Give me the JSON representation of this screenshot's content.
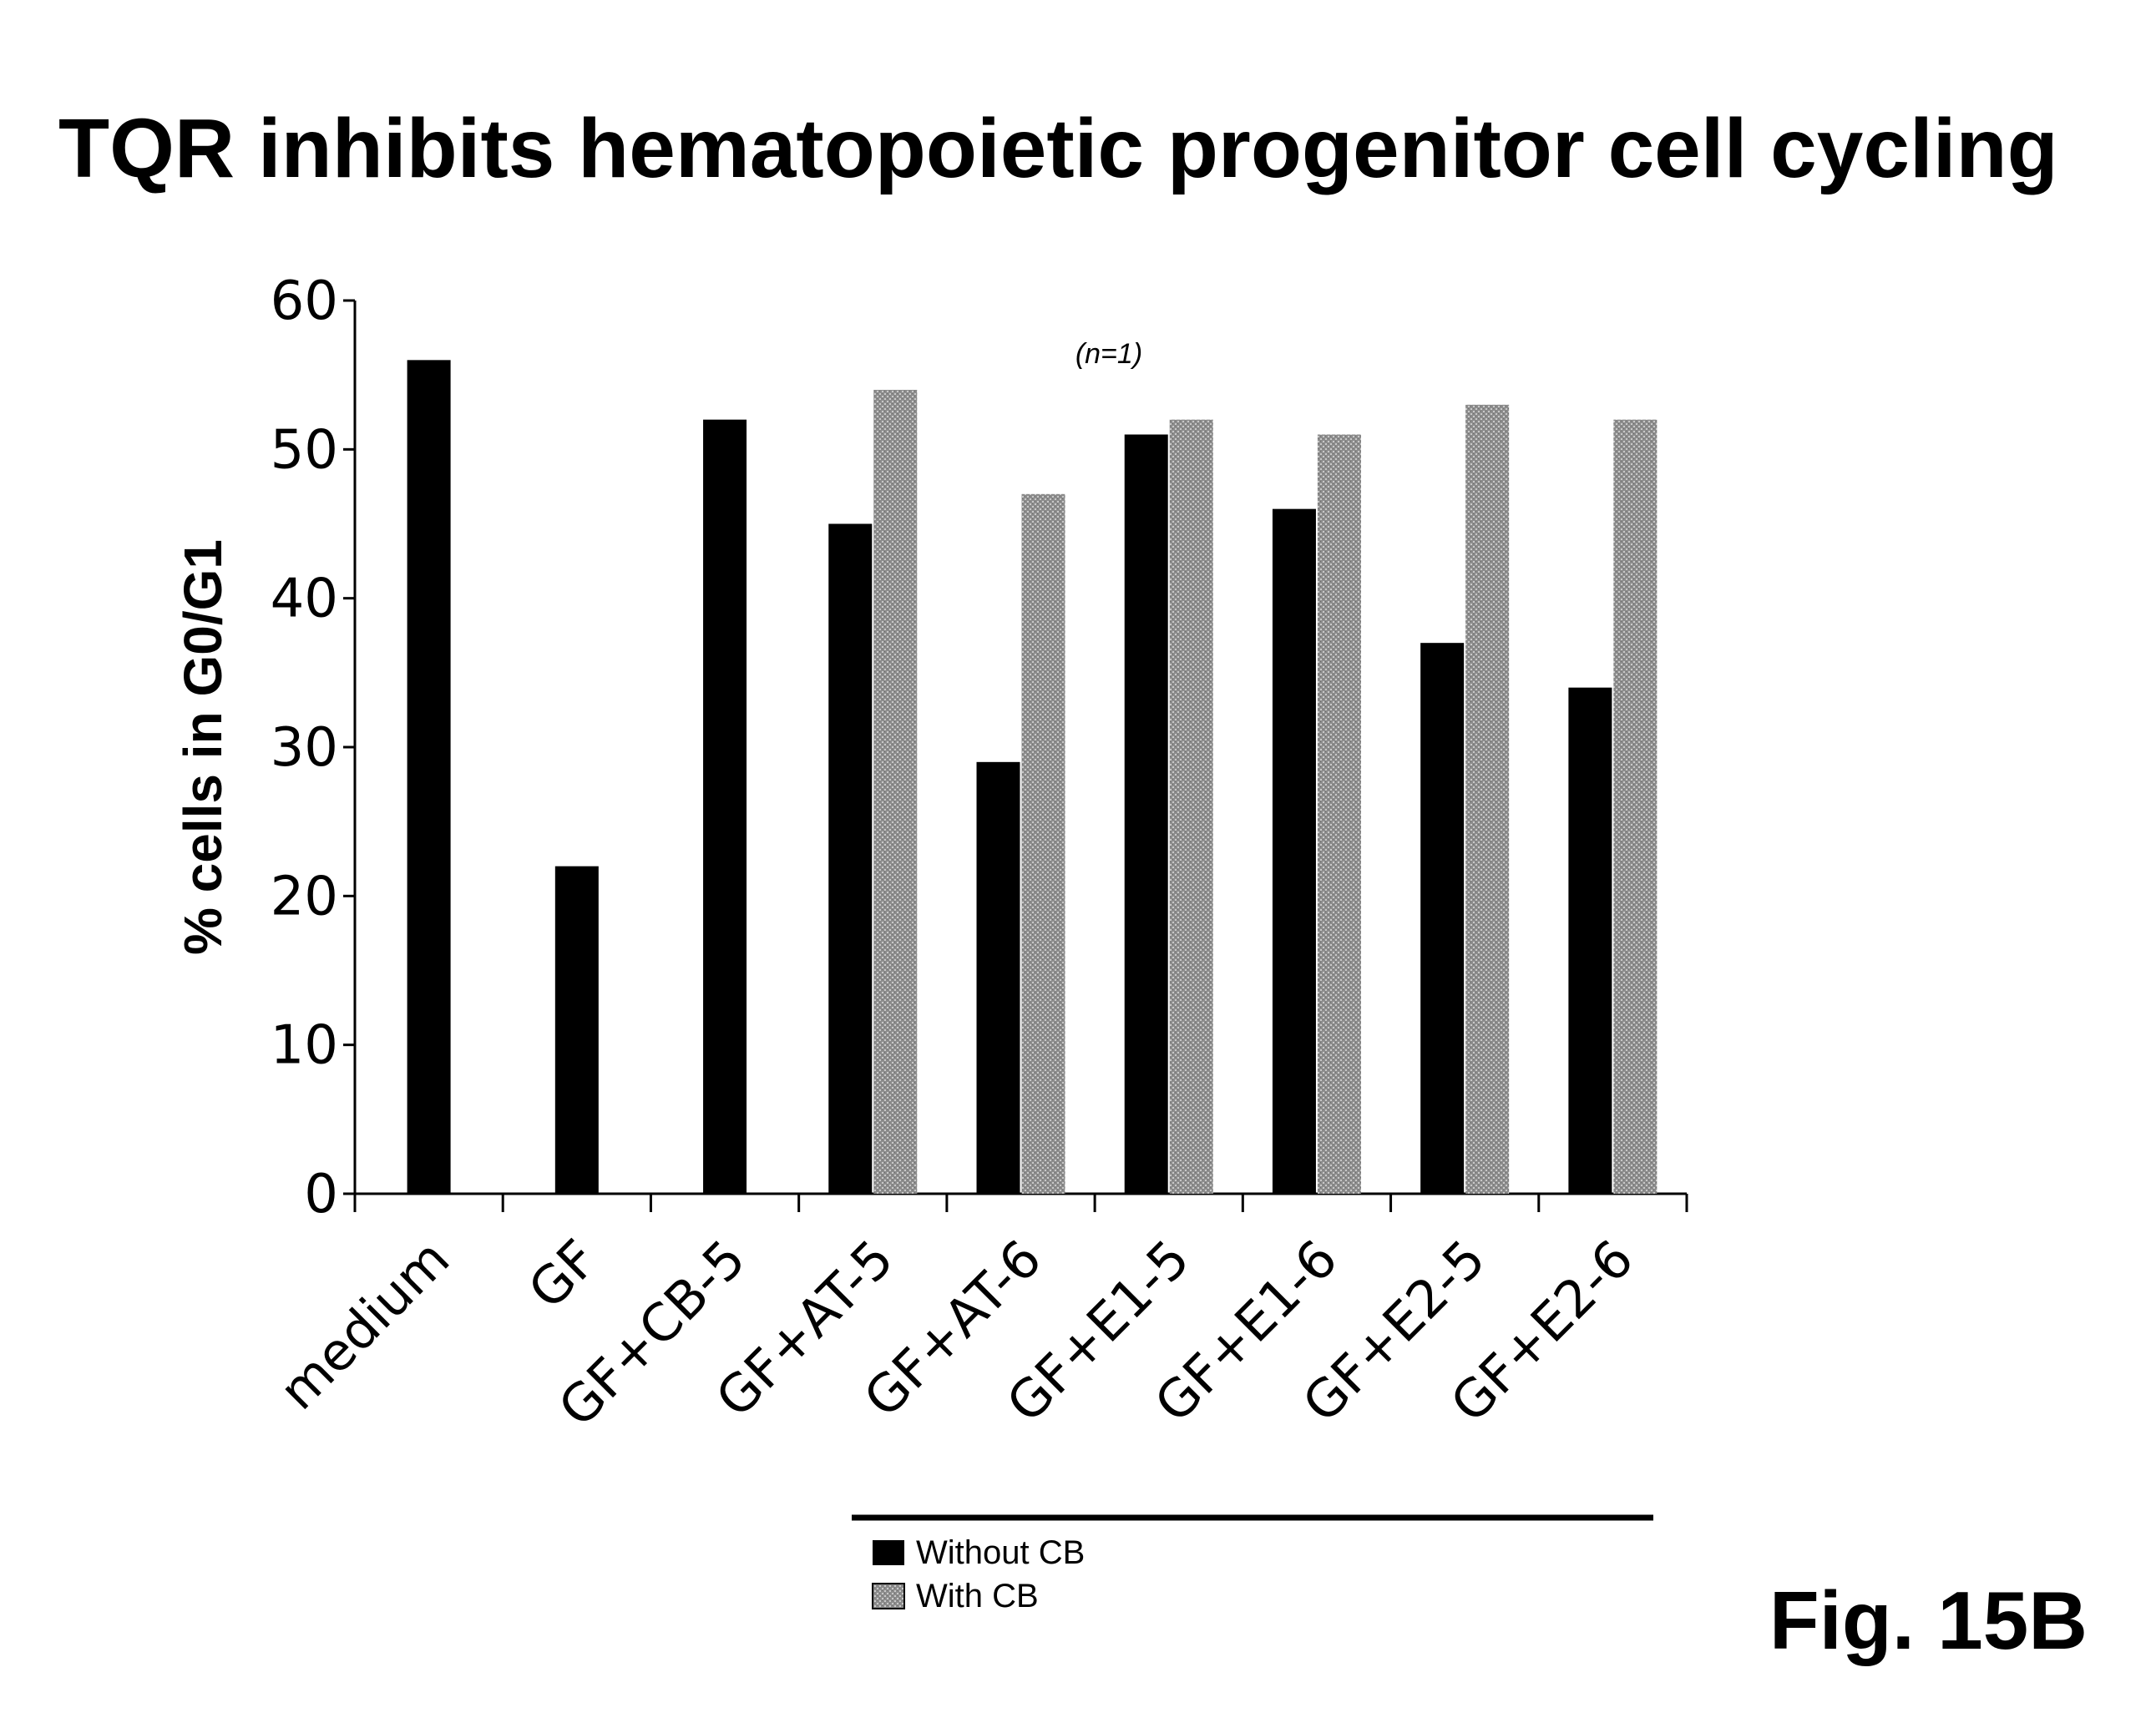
{
  "chart_data": {
    "type": "bar",
    "title": "TQR inhibits hematopoietic progenitor cell cycling",
    "xlabel": "",
    "ylabel": "% cells in G0/G1",
    "ylim": [
      0,
      60
    ],
    "yticks": [
      "0",
      "10",
      "20",
      "30",
      "40",
      "50",
      "60"
    ],
    "categories": [
      "medium",
      "GF",
      "GF+CB-5",
      "GF+AT-5",
      "GF+AT-6",
      "GF+E1-5",
      "GF+E1-6",
      "GF+E2-5",
      "GF+E2-6"
    ],
    "series": [
      {
        "name": "Without CB",
        "color": "#000000",
        "values": [
          56,
          22,
          52,
          45,
          29,
          51,
          46,
          37,
          34
        ]
      },
      {
        "name": "With CB",
        "color": "#9a9a9a",
        "values": [
          null,
          null,
          null,
          54,
          47,
          52,
          51,
          53,
          52
        ]
      }
    ],
    "annotation": "(n=1)",
    "legend_position": "bottom-center",
    "grid": false,
    "figure_label": "Fig. 15B"
  }
}
